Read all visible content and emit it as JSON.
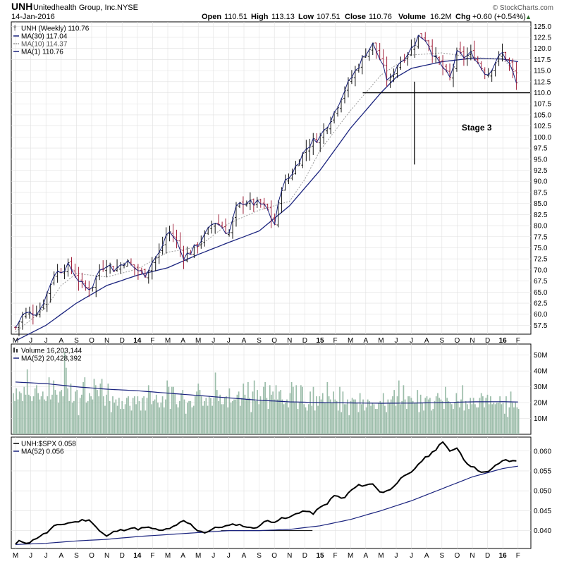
{
  "header": {
    "symbol": "UNH",
    "company": "Unitedhealth Group, Inc.",
    "exchange": "NYSE",
    "date": "14-Jan-2016",
    "open_label": "Open",
    "open": "110.51",
    "high_label": "High",
    "high": "113.13",
    "low_label": "Low",
    "low": "107.51",
    "close_label": "Close",
    "close": "110.76",
    "volume_label": "Volume",
    "volume": "16.2M",
    "chg_label": "Chg",
    "chg": "+0.60 (+0.54%)",
    "chg_arrow": "▲",
    "brand": "© StockCharts.com"
  },
  "colors": {
    "up": "#111111",
    "down": "#a0203a",
    "ma30": "#1a237e",
    "ma10": "#999999",
    "ratio": "#000000",
    "ratio_ma": "#1a237e",
    "volume_bar": "#9cbdaa",
    "volume_ma": "#1a237e",
    "grid": "#e0e0e0"
  },
  "chart_data": [
    {
      "type": "line",
      "title": "UNH (Weekly) 110.76",
      "legend": [
        {
          "label": "UNH (Weekly) 110.76",
          "icon": "ohlc-icon"
        },
        {
          "label": "MA(30) 117.04",
          "icon": "line-solid-icon"
        },
        {
          "label": "MA(10) 114.37",
          "icon": "line-dotted-icon"
        },
        {
          "label": "MA(1) 110.76",
          "icon": "line-solid-icon"
        }
      ],
      "ylim": [
        55.5,
        126
      ],
      "yticks": [
        "57.5",
        "60.0",
        "62.5",
        "65.0",
        "67.5",
        "70.0",
        "72.5",
        "75.0",
        "77.5",
        "80.0",
        "82.5",
        "85.0",
        "87.5",
        "90.0",
        "92.5",
        "95.0",
        "97.5",
        "100.0",
        "102.5",
        "105.0",
        "107.5",
        "110.0",
        "112.5",
        "115.0",
        "117.5",
        "120.0",
        "122.5",
        "125.0"
      ],
      "xticks": [
        "M",
        "J",
        "J",
        "A",
        "S",
        "O",
        "N",
        "D",
        "14",
        "F",
        "M",
        "A",
        "M",
        "J",
        "J",
        "A",
        "S",
        "O",
        "N",
        "D",
        "15",
        "F",
        "M",
        "A",
        "M",
        "J",
        "J",
        "A",
        "S",
        "O",
        "N",
        "D",
        "16",
        "F"
      ],
      "months": 34,
      "price_keypoints": [
        [
          0,
          57
        ],
        [
          0.5,
          60
        ],
        [
          1.5,
          60.5
        ],
        [
          2.0,
          64
        ],
        [
          2.5,
          69
        ],
        [
          3.5,
          71
        ],
        [
          4.0,
          68.5
        ],
        [
          4.5,
          66
        ],
        [
          5.0,
          66
        ],
        [
          5.5,
          70
        ],
        [
          6.0,
          71.5
        ],
        [
          6.5,
          70
        ],
        [
          7.2,
          72
        ],
        [
          8.0,
          70
        ],
        [
          8.5,
          69
        ],
        [
          9.0,
          72
        ],
        [
          9.5,
          74
        ],
        [
          10.0,
          79
        ],
        [
          10.5,
          77
        ],
        [
          11.0,
          73
        ],
        [
          11.5,
          74
        ],
        [
          12.0,
          76
        ],
        [
          12.5,
          78
        ],
        [
          13.0,
          81
        ],
        [
          13.5,
          80
        ],
        [
          14.0,
          78
        ],
        [
          14.5,
          84
        ],
        [
          15.0,
          85.5
        ],
        [
          15.5,
          85
        ],
        [
          16.0,
          85
        ],
        [
          16.5,
          84
        ],
        [
          17.0,
          80
        ],
        [
          17.5,
          89
        ],
        [
          18.0,
          91
        ],
        [
          18.5,
          94
        ],
        [
          19.0,
          97
        ],
        [
          19.5,
          99
        ],
        [
          20.0,
          100
        ],
        [
          20.5,
          103
        ],
        [
          21.0,
          106
        ],
        [
          21.5,
          110
        ],
        [
          22.0,
          113
        ],
        [
          22.5,
          116
        ],
        [
          23.0,
          119
        ],
        [
          23.5,
          121
        ],
        [
          24.0,
          117
        ],
        [
          24.5,
          112
        ],
        [
          25.0,
          116
        ],
        [
          25.5,
          118
        ],
        [
          26.0,
          120
        ],
        [
          26.5,
          123
        ],
        [
          27.0,
          122
        ],
        [
          27.5,
          118
        ],
        [
          28.0,
          116
        ],
        [
          28.5,
          113
        ],
        [
          29.0,
          119
        ],
        [
          29.5,
          118
        ],
        [
          30.0,
          119
        ],
        [
          30.5,
          116
        ],
        [
          31.0,
          114
        ],
        [
          31.5,
          117
        ],
        [
          32.0,
          119
        ],
        [
          32.5,
          116
        ],
        [
          33.0,
          111
        ]
      ],
      "ma30_keypoints": [
        [
          0,
          54
        ],
        [
          2,
          57.5
        ],
        [
          4,
          62.5
        ],
        [
          6,
          66.5
        ],
        [
          8,
          68.8
        ],
        [
          10,
          70.5
        ],
        [
          12,
          73.5
        ],
        [
          14,
          76.2
        ],
        [
          16,
          78.8
        ],
        [
          18,
          84.5
        ],
        [
          20,
          92.5
        ],
        [
          22,
          102
        ],
        [
          24,
          110
        ],
        [
          25,
          113.5
        ],
        [
          26,
          115.5
        ],
        [
          28,
          117
        ],
        [
          30,
          117.8
        ],
        [
          32,
          117.6
        ],
        [
          33,
          117.0
        ]
      ],
      "ma10_keypoints": [
        [
          0,
          56
        ],
        [
          2,
          61.5
        ],
        [
          3,
          66.5
        ],
        [
          4,
          69.2
        ],
        [
          6,
          68.4
        ],
        [
          8,
          70.2
        ],
        [
          10,
          74
        ],
        [
          12,
          75.2
        ],
        [
          14,
          80.5
        ],
        [
          16,
          83.5
        ],
        [
          18,
          85.5
        ],
        [
          19,
          90.5
        ],
        [
          20,
          97
        ],
        [
          22,
          106
        ],
        [
          24,
          114
        ],
        [
          26,
          118.5
        ],
        [
          28,
          119
        ],
        [
          30,
          118
        ],
        [
          32,
          117.5
        ],
        [
          33,
          114.4
        ]
      ],
      "annotations": [
        {
          "text": "Stage 3",
          "x_month": 29.3,
          "y": 101.5
        }
      ],
      "support_level": {
        "y": 110.0,
        "from_month": 22.8,
        "to_month": 33.8
      },
      "spike_low": {
        "x_month": 26.2,
        "low": 93.8,
        "high": 112.5
      }
    },
    {
      "type": "bar",
      "title": "Volume 16,203,144",
      "legend": [
        {
          "label": "Volume 16,203,144",
          "icon": "volume-bars-icon"
        },
        {
          "label": "MA(52) 20,428,392",
          "icon": "line-solid-icon"
        }
      ],
      "ylim": [
        0,
        57
      ],
      "yunits": "M",
      "yticks": [
        "10M",
        "20M",
        "30M",
        "40M",
        "50M"
      ],
      "values_m": [
        26,
        21,
        29,
        22,
        27,
        26,
        21,
        30,
        25,
        41,
        25,
        24,
        21,
        24,
        29,
        31,
        26,
        22,
        24,
        27,
        22,
        21,
        24,
        36,
        22,
        25,
        34,
        28,
        25,
        20,
        27,
        28,
        24,
        52,
        42,
        29,
        21,
        32,
        20,
        21,
        27,
        28,
        12,
        23,
        25,
        33,
        36,
        20,
        21,
        26,
        24,
        22,
        35,
        31,
        28,
        24,
        32,
        35,
        24,
        18,
        25,
        32,
        21,
        14,
        24,
        20,
        22,
        18,
        23,
        16,
        21,
        16,
        19,
        23,
        24,
        18,
        15,
        23,
        24,
        19,
        24,
        21,
        15,
        23,
        24,
        15,
        23,
        31,
        27,
        19,
        21,
        22,
        25,
        20,
        17,
        20,
        24,
        17,
        22,
        34,
        30,
        16,
        30,
        30,
        26,
        19,
        17,
        21,
        26,
        28,
        22,
        13,
        20,
        21,
        21,
        17,
        18,
        24,
        27,
        32,
        28,
        24,
        18,
        21,
        23,
        18,
        24,
        23,
        18,
        23,
        39,
        28,
        21,
        25,
        19,
        19,
        23,
        24,
        17,
        29,
        20,
        21,
        22,
        22,
        25,
        27,
        18,
        23,
        32,
        25,
        22,
        33,
        23,
        14,
        27,
        34,
        21,
        28,
        19,
        24,
        21,
        30,
        33,
        23,
        16,
        31,
        25,
        27,
        22,
        31,
        22,
        27,
        28,
        22,
        19,
        20,
        22,
        17,
        26,
        33,
        30,
        20,
        31,
        16,
        20,
        31,
        30,
        19,
        17,
        15,
        19,
        27,
        18,
        30,
        15,
        24,
        18,
        24,
        22,
        26,
        20,
        20,
        33,
        24,
        22,
        20,
        27,
        22,
        21,
        15,
        30,
        14,
        27,
        19,
        19,
        22,
        12,
        21,
        23,
        22,
        22,
        20,
        14,
        26,
        19,
        22,
        15,
        17,
        22,
        21,
        18,
        20,
        19,
        16,
        16,
        20,
        21,
        20,
        26,
        18,
        14,
        22,
        20,
        22,
        24,
        28,
        18,
        24,
        34,
        19,
        21,
        31,
        22,
        16,
        24,
        24,
        23,
        21,
        20,
        20,
        28,
        14,
        25,
        20,
        15,
        23,
        24,
        22,
        23,
        15,
        16,
        21,
        24,
        26,
        23,
        22,
        21,
        16,
        30,
        23,
        21,
        20,
        19,
        16,
        20,
        26,
        21,
        17,
        22,
        31,
        15,
        21,
        19,
        16,
        23,
        19,
        23,
        19,
        17,
        17,
        23,
        26,
        24,
        17,
        23,
        25,
        19,
        24,
        19,
        20,
        19,
        20,
        20,
        24,
        19,
        20,
        13,
        24,
        11,
        17,
        27,
        20,
        17,
        20,
        17,
        16
      ],
      "ma_keypoints": [
        [
          0,
          33
        ],
        [
          2,
          32
        ],
        [
          4,
          30
        ],
        [
          6,
          28.5
        ],
        [
          8,
          27.5
        ],
        [
          10,
          26
        ],
        [
          12,
          24.5
        ],
        [
          14,
          23
        ],
        [
          16,
          21.5
        ],
        [
          18,
          20.5
        ],
        [
          20,
          20
        ],
        [
          22,
          19.8
        ],
        [
          24,
          19.6
        ],
        [
          26,
          19.7
        ],
        [
          28,
          20
        ],
        [
          30,
          20.5
        ],
        [
          32,
          20.6
        ],
        [
          33,
          20.4
        ]
      ]
    },
    {
      "type": "line",
      "title": "UNH:$SPX 0.058",
      "legend": [
        {
          "label": "UNH:$SPX 0.058",
          "icon": "line-solid-icon"
        },
        {
          "label": "MA(52) 0.056",
          "icon": "line-solid-icon"
        }
      ],
      "ylim": [
        0.0355,
        0.0635
      ],
      "yticks": [
        "0.040",
        "0.045",
        "0.050",
        "0.055",
        "0.060"
      ],
      "xticks": [
        "M",
        "J",
        "J",
        "A",
        "S",
        "O",
        "N",
        "D",
        "14",
        "F",
        "M",
        "A",
        "M",
        "J",
        "J",
        "A",
        "S",
        "O",
        "N",
        "D",
        "15",
        "F",
        "M",
        "A",
        "M",
        "J",
        "J",
        "A",
        "S",
        "O",
        "N",
        "D",
        "16",
        "F"
      ],
      "ratio_keypoints": [
        [
          0,
          0.0365
        ],
        [
          0.3,
          0.0375
        ],
        [
          0.6,
          0.037
        ],
        [
          1.0,
          0.0371
        ],
        [
          1.5,
          0.0385
        ],
        [
          2.0,
          0.0393
        ],
        [
          2.5,
          0.041
        ],
        [
          3.0,
          0.0415
        ],
        [
          3.5,
          0.042
        ],
        [
          4.0,
          0.0422
        ],
        [
          4.5,
          0.0427
        ],
        [
          5.0,
          0.0424
        ],
        [
          5.5,
          0.04
        ],
        [
          6.0,
          0.0385
        ],
        [
          6.5,
          0.0398
        ],
        [
          7.0,
          0.0401
        ],
        [
          7.5,
          0.0407
        ],
        [
          8.0,
          0.0404
        ],
        [
          8.5,
          0.0407
        ],
        [
          9.0,
          0.0406
        ],
        [
          9.5,
          0.0398
        ],
        [
          10.0,
          0.0405
        ],
        [
          10.5,
          0.041
        ],
        [
          11.0,
          0.0425
        ],
        [
          11.5,
          0.0415
        ],
        [
          12.0,
          0.04
        ],
        [
          12.5,
          0.0395
        ],
        [
          13.0,
          0.0405
        ],
        [
          13.5,
          0.041
        ],
        [
          14.0,
          0.0412
        ],
        [
          14.5,
          0.0416
        ],
        [
          15.0,
          0.0412
        ],
        [
          15.5,
          0.0405
        ],
        [
          16.0,
          0.0412
        ],
        [
          16.5,
          0.0425
        ],
        [
          17.0,
          0.0423
        ],
        [
          17.5,
          0.043
        ],
        [
          18.0,
          0.0432
        ],
        [
          18.5,
          0.0445
        ],
        [
          19.0,
          0.045
        ],
        [
          19.5,
          0.0442
        ],
        [
          20.0,
          0.0457
        ],
        [
          20.5,
          0.047
        ],
        [
          21.0,
          0.049
        ],
        [
          21.5,
          0.0478
        ],
        [
          22.0,
          0.05
        ],
        [
          22.5,
          0.0513
        ],
        [
          23.0,
          0.0515
        ],
        [
          23.5,
          0.0517
        ],
        [
          24.0,
          0.0495
        ],
        [
          24.5,
          0.05
        ],
        [
          25.0,
          0.052
        ],
        [
          25.5,
          0.0535
        ],
        [
          26.0,
          0.0545
        ],
        [
          26.5,
          0.057
        ],
        [
          27.0,
          0.0585
        ],
        [
          27.5,
          0.06
        ],
        [
          28.0,
          0.0625
        ],
        [
          28.5,
          0.0598
        ],
        [
          29.0,
          0.061
        ],
        [
          29.5,
          0.0575
        ],
        [
          30.0,
          0.056
        ],
        [
          30.5,
          0.055
        ],
        [
          31.0,
          0.0545
        ],
        [
          31.5,
          0.0562
        ],
        [
          32.0,
          0.0577
        ],
        [
          32.5,
          0.0574
        ],
        [
          33.0,
          0.0577
        ]
      ],
      "ma_keypoints": [
        [
          0,
          0.0365
        ],
        [
          2,
          0.0368
        ],
        [
          4,
          0.0374
        ],
        [
          6,
          0.0378
        ],
        [
          8,
          0.0385
        ],
        [
          10,
          0.039
        ],
        [
          12,
          0.0395
        ],
        [
          14,
          0.04
        ],
        [
          16,
          0.04
        ],
        [
          18,
          0.0403
        ],
        [
          20,
          0.0412
        ],
        [
          22,
          0.0428
        ],
        [
          24,
          0.045
        ],
        [
          26,
          0.0475
        ],
        [
          28,
          0.0505
        ],
        [
          30,
          0.0535
        ],
        [
          32,
          0.0556
        ],
        [
          33,
          0.0562
        ]
      ],
      "flat_level": {
        "y": 0.04,
        "from_month": 13.5,
        "to_month": 19.5
      }
    }
  ]
}
